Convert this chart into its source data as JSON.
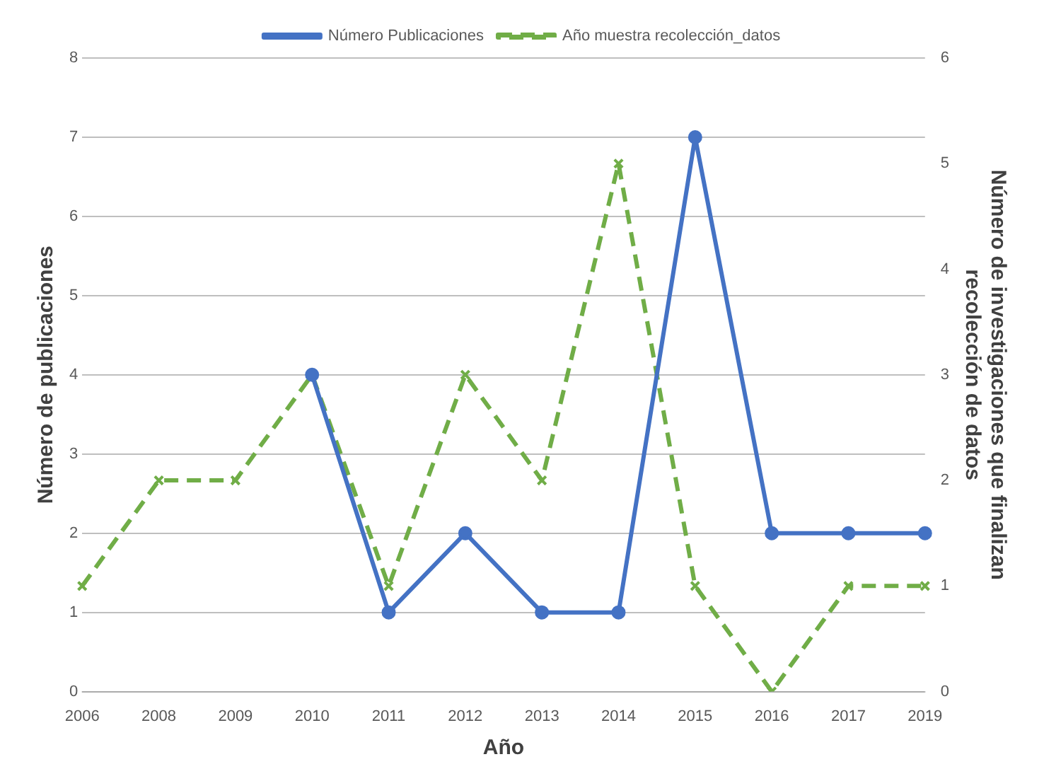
{
  "chart_data": {
    "type": "line",
    "xlabel": "Año",
    "ylabel": "Número de publicaciones",
    "y2label": "Número de investigaciones que finalizan recolección de datos",
    "categories": [
      "2006",
      "2008",
      "2009",
      "2010",
      "2011",
      "2012",
      "2013",
      "2014",
      "2015",
      "2016",
      "2017",
      "2019"
    ],
    "series": [
      {
        "name": "Número Publicaciones",
        "color": "#4472c4",
        "marker": "circle",
        "line_style": "solid",
        "values": [
          null,
          null,
          null,
          4,
          1,
          2,
          1,
          1,
          7,
          2,
          2,
          2
        ]
      },
      {
        "name": "Año muestra recolección_datos",
        "color": "#70ad47",
        "marker": "cross",
        "line_style": "dashed",
        "axis": "y2",
        "values": [
          1,
          2,
          2,
          3,
          1,
          3,
          2,
          5,
          1,
          0,
          1,
          1
        ]
      }
    ],
    "ylim": [
      0,
      8
    ],
    "yticks": [
      0,
      1,
      2,
      3,
      4,
      5,
      6,
      7,
      8
    ],
    "y2lim": [
      0,
      6
    ],
    "y2ticks": [
      0,
      1,
      2,
      3,
      4,
      5,
      6
    ],
    "grid": "y",
    "legend": "top"
  }
}
